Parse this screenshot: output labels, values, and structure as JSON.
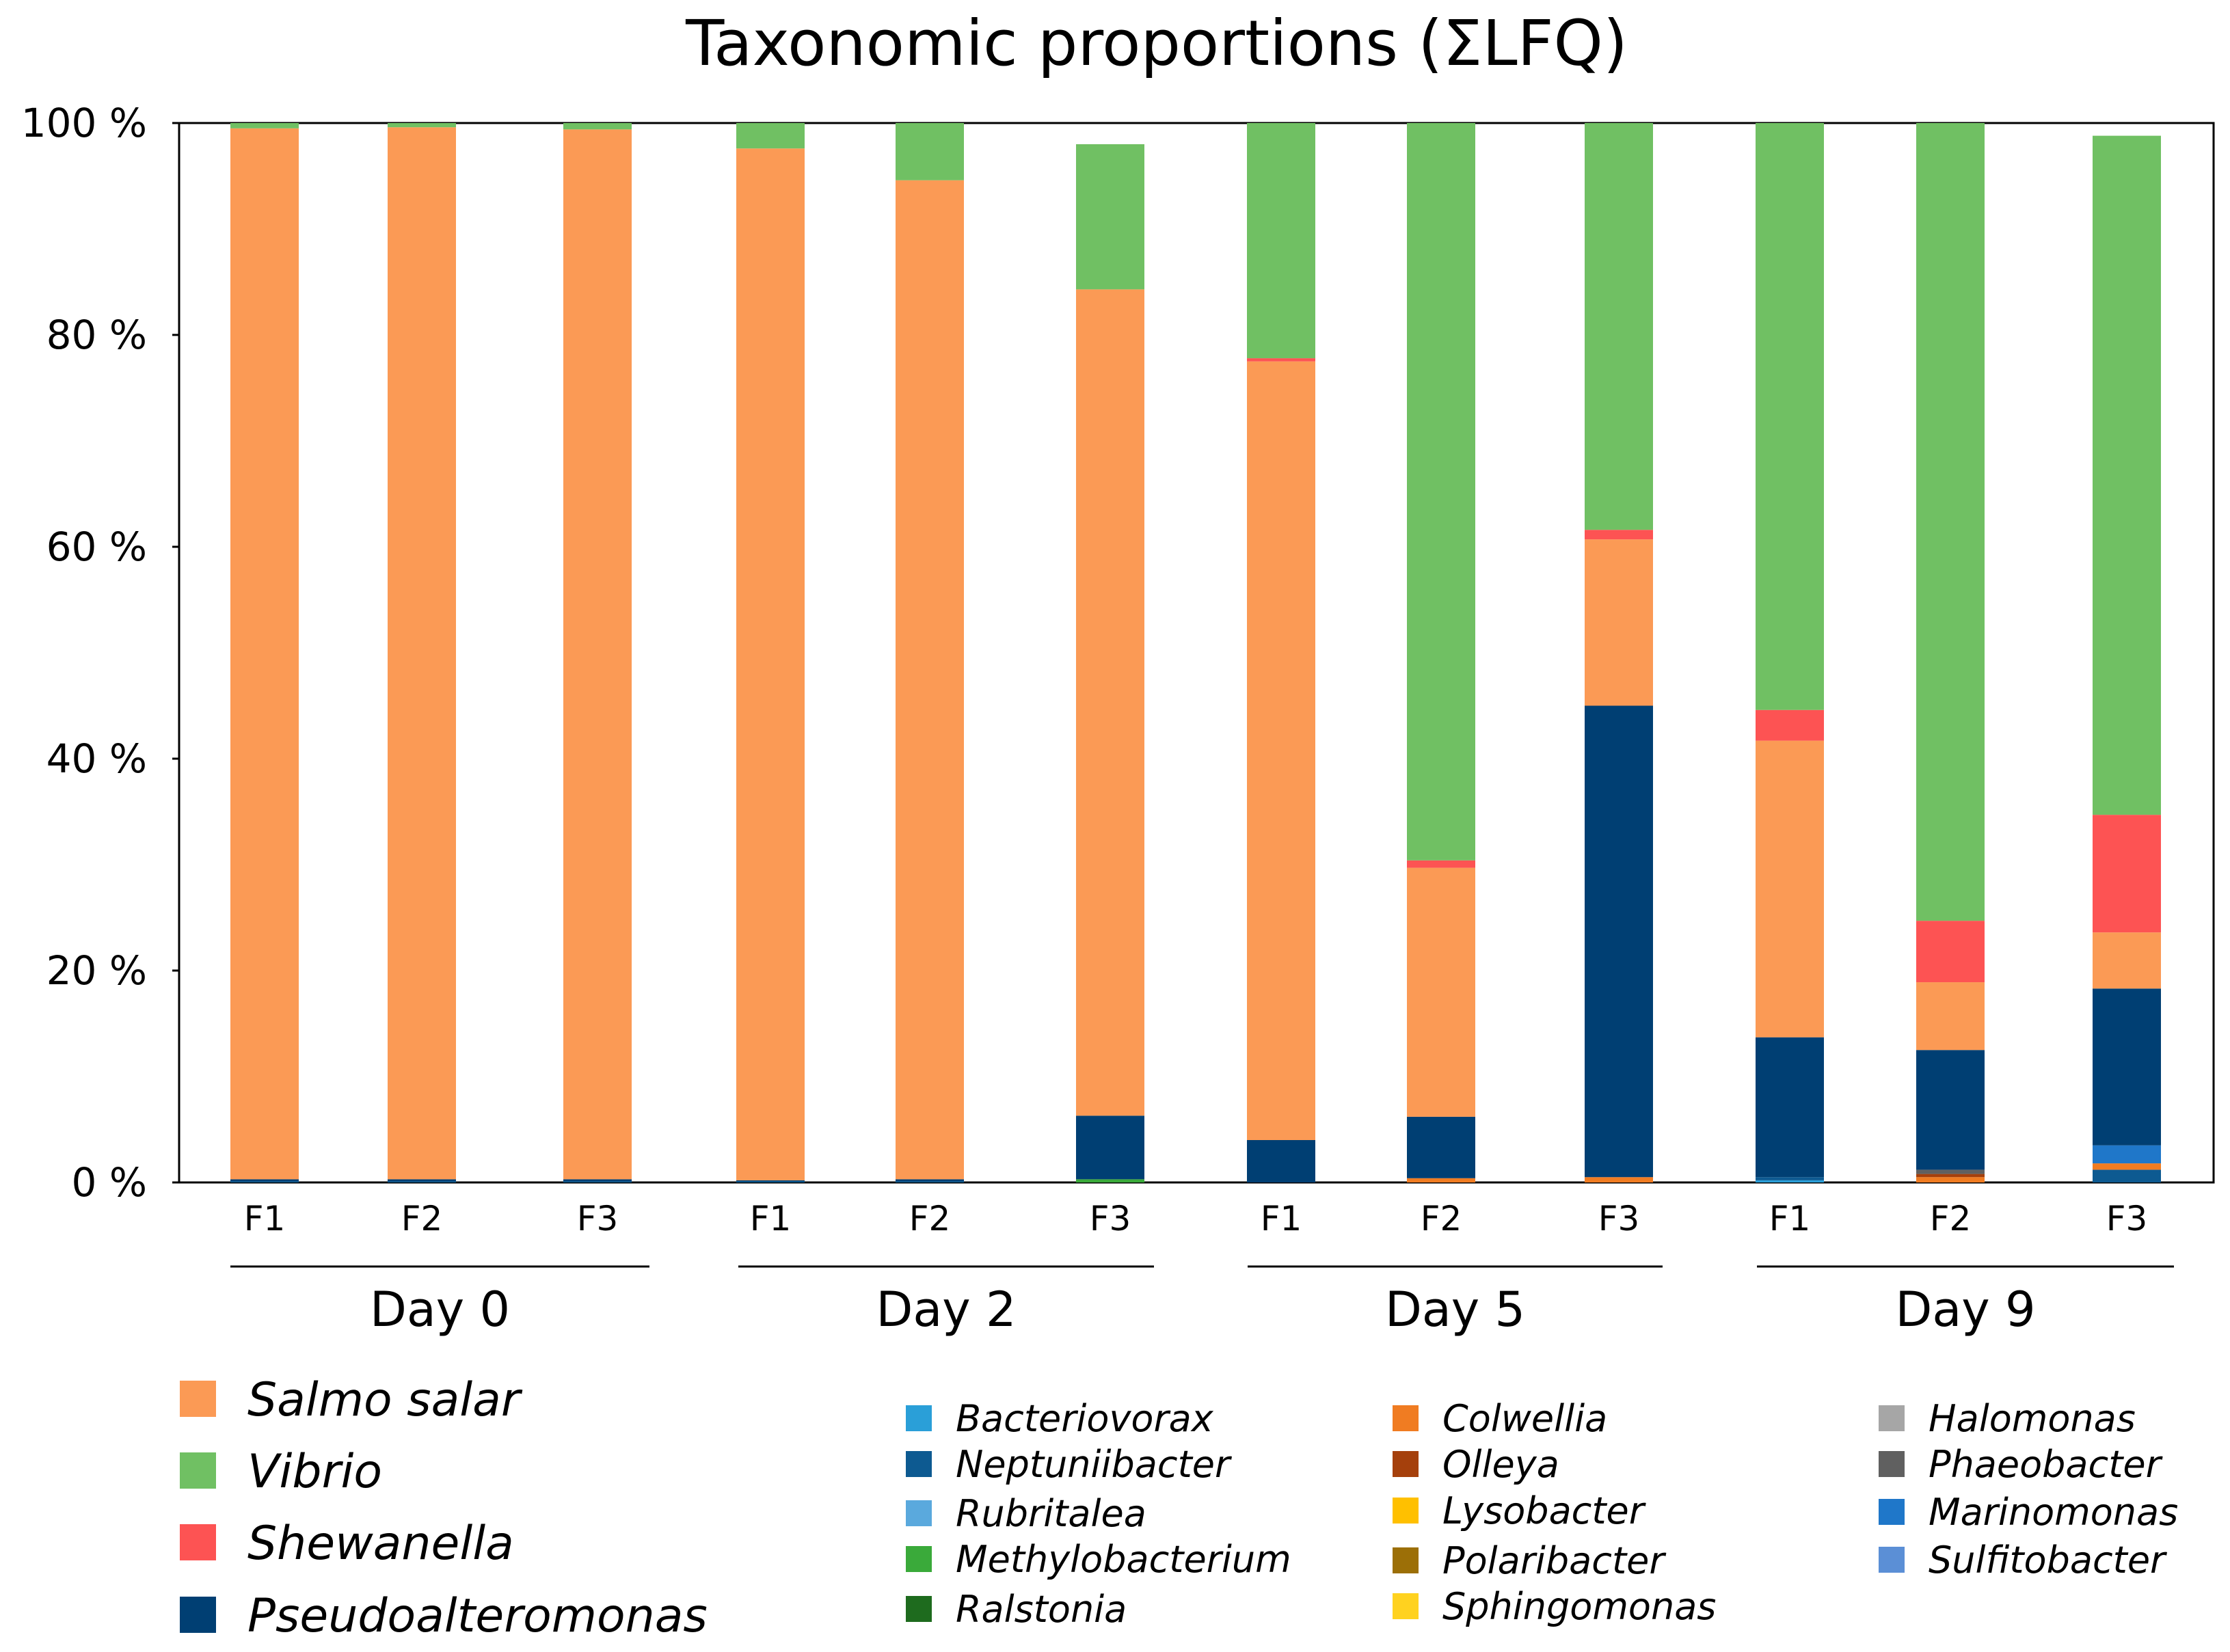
{
  "chart_data": {
    "type": "bar",
    "stacked": true,
    "title": "Taxonomic proportions (ΣLFQ)",
    "xlabel": "",
    "ylabel": "",
    "ylim": [
      0,
      100
    ],
    "y_ticks": [
      "0 %",
      "20 %",
      "40 %",
      "60 %",
      "80 %",
      "100 %"
    ],
    "y_tick_values": [
      0,
      20,
      40,
      60,
      80,
      100
    ],
    "categories": [
      "F1",
      "F2",
      "F3",
      "F1",
      "F2",
      "F3",
      "F1",
      "F2",
      "F3",
      "F1",
      "F2",
      "F3"
    ],
    "groups": [
      {
        "label": "Day 0",
        "members": [
          0,
          1,
          2
        ]
      },
      {
        "label": "Day 2",
        "members": [
          3,
          4,
          5
        ]
      },
      {
        "label": "Day 5",
        "members": [
          6,
          7,
          8
        ]
      },
      {
        "label": "Day 9",
        "members": [
          9,
          10,
          11
        ]
      }
    ],
    "series": [
      {
        "name": "Bacteriovorax",
        "color": "#2a9fd8",
        "values": [
          0,
          0,
          0,
          0,
          0,
          0,
          0,
          0,
          0,
          0.2,
          0,
          0
        ]
      },
      {
        "name": "Neptuniibacter",
        "color": "#0d5a91",
        "values": [
          0.1,
          0.1,
          0.1,
          0.1,
          0.1,
          0,
          0,
          0,
          0,
          0.3,
          0,
          1.2
        ]
      },
      {
        "name": "Rubritalea",
        "color": "#5aa9dd",
        "values": [
          0,
          0,
          0,
          0,
          0,
          0,
          0,
          0,
          0,
          0,
          0,
          0
        ]
      },
      {
        "name": "Methylobacterium",
        "color": "#3aaa3a",
        "values": [
          0,
          0,
          0,
          0,
          0,
          0.3,
          0,
          0,
          0,
          0,
          0,
          0
        ]
      },
      {
        "name": "Ralstonia",
        "color": "#1e6b1e",
        "values": [
          0,
          0,
          0,
          0,
          0,
          0,
          0,
          0,
          0,
          0,
          0,
          0
        ]
      },
      {
        "name": "Colwellia",
        "color": "#f07c22",
        "values": [
          0,
          0,
          0,
          0,
          0,
          0,
          0,
          0.4,
          0.5,
          0,
          0.5,
          0.6
        ]
      },
      {
        "name": "Olleya",
        "color": "#a5400c",
        "values": [
          0,
          0,
          0,
          0,
          0,
          0,
          0,
          0,
          0,
          0,
          0.3,
          0
        ]
      },
      {
        "name": "Lysobacter",
        "color": "#ffc000",
        "values": [
          0,
          0,
          0,
          0,
          0,
          0,
          0,
          0,
          0,
          0,
          0,
          0
        ]
      },
      {
        "name": "Polaribacter",
        "color": "#9c6f07",
        "values": [
          0,
          0,
          0,
          0,
          0,
          0,
          0,
          0,
          0,
          0,
          0,
          0
        ]
      },
      {
        "name": "Sphingomonas",
        "color": "#ffd21f",
        "values": [
          0,
          0,
          0,
          0,
          0,
          0,
          0,
          0,
          0,
          0,
          0,
          0
        ]
      },
      {
        "name": "Halomonas",
        "color": "#a6a6a6",
        "values": [
          0,
          0,
          0,
          0,
          0,
          0,
          0,
          0,
          0,
          0,
          0,
          0
        ]
      },
      {
        "name": "Phaeobacter",
        "color": "#606060",
        "values": [
          0,
          0,
          0,
          0,
          0,
          0,
          0,
          0,
          0,
          0,
          0.4,
          0
        ]
      },
      {
        "name": "Marinomonas",
        "color": "#1f77c9",
        "values": [
          0,
          0,
          0,
          0,
          0,
          0,
          0,
          0,
          0,
          0,
          0,
          1.7
        ]
      },
      {
        "name": "Sulfitobacter",
        "color": "#5b8fd6",
        "values": [
          0,
          0,
          0,
          0,
          0,
          0,
          0,
          0,
          0,
          0,
          0,
          0
        ]
      },
      {
        "name": "Pseudoalteromonas",
        "color": "#003f73",
        "values": [
          0.2,
          0.2,
          0.2,
          0.1,
          0.2,
          6,
          4,
          5.8,
          44.5,
          13.2,
          11.3,
          14.8
        ]
      },
      {
        "name": "Salmo salar",
        "color": "#fb9a55",
        "values": [
          99.2,
          99.3,
          99.1,
          97.4,
          94.3,
          78,
          73.5,
          23.5,
          15.7,
          28,
          6.4,
          5.3
        ]
      },
      {
        "name": "Shewanella",
        "color": "#fd5353",
        "values": [
          0,
          0,
          0,
          0,
          0,
          0,
          0.3,
          0.7,
          0.9,
          2.9,
          5.8,
          11.1
        ]
      },
      {
        "name": "Vibrio",
        "color": "#70c063",
        "values": [
          0.5,
          0.4,
          0.6,
          2.4,
          5.4,
          13.7,
          22.2,
          69.6,
          38.4,
          55.4,
          75.3,
          64.1
        ]
      }
    ],
    "legend": {
      "major": [
        "Salmo salar",
        "Vibrio",
        "Shewanella",
        "Pseudoalteromonas"
      ],
      "minor_columns": [
        [
          "Bacteriovorax",
          "Neptuniibacter",
          "Rubritalea",
          "Methylobacterium",
          "Ralstonia"
        ],
        [
          "Colwellia",
          "Olleya",
          "Lysobacter",
          "Polaribacter",
          "Sphingomonas"
        ],
        [
          "Halomonas",
          "Phaeobacter",
          "Marinomonas",
          "Sulfitobacter"
        ]
      ]
    }
  }
}
